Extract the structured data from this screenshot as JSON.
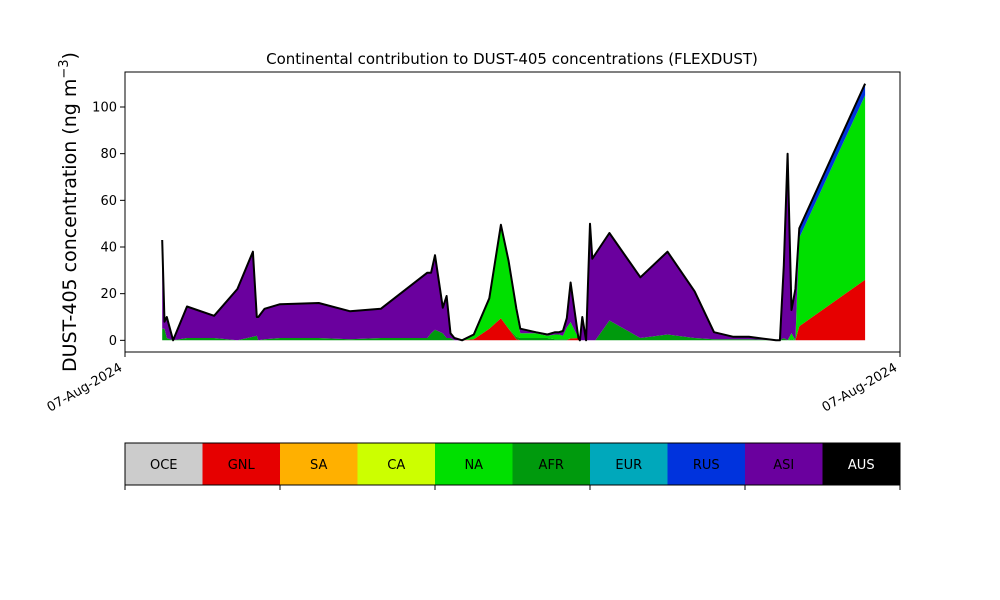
{
  "chart_data": {
    "type": "area",
    "title": "Continental contribution to DUST-405 concentrations (FLEXDUST)",
    "ylabel_main": "DUST-405 concentration (ng m",
    "ylabel_sup": "−3",
    "ylabel_close": ")",
    "xlabel": "",
    "ylim": [
      -5,
      115
    ],
    "yticks": [
      0,
      20,
      40,
      60,
      80,
      100
    ],
    "xtick_labels": [
      "07-Aug-2024",
      "07-Aug-2024"
    ],
    "grid": false,
    "stack_order": [
      "GNL",
      "AFR",
      "NA",
      "RUS",
      "ASI"
    ],
    "x": [
      0.048,
      0.051,
      0.054,
      0.062,
      0.08,
      0.115,
      0.145,
      0.165,
      0.17,
      0.172,
      0.18,
      0.2,
      0.25,
      0.29,
      0.33,
      0.39,
      0.395,
      0.4,
      0.41,
      0.415,
      0.42,
      0.425,
      0.435,
      0.45,
      0.47,
      0.485,
      0.495,
      0.505,
      0.51,
      0.53,
      0.545,
      0.555,
      0.56,
      0.565,
      0.57,
      0.575,
      0.585,
      0.587,
      0.59,
      0.595,
      0.6,
      0.603,
      0.607,
      0.625,
      0.665,
      0.7,
      0.735,
      0.76,
      0.785,
      0.805,
      0.84,
      0.845,
      0.85,
      0.855,
      0.86,
      0.865,
      0.87,
      0.955
    ],
    "series": [
      {
        "name": "GNL",
        "values": [
          0,
          0,
          0,
          0,
          0,
          0,
          0,
          0,
          0,
          0,
          0,
          0,
          0,
          0,
          0,
          0,
          0,
          0,
          0,
          0,
          0,
          0,
          0,
          0.5,
          5,
          9.5,
          5,
          0.5,
          0,
          0,
          0,
          0,
          0,
          0,
          0,
          0.8,
          1,
          0,
          0,
          0,
          0,
          0,
          0,
          0,
          0,
          0,
          0,
          0,
          0,
          0,
          0,
          0,
          0,
          0,
          0,
          0,
          6,
          26
        ]
      },
      {
        "name": "AFR",
        "values": [
          5,
          5,
          1,
          0,
          1,
          1,
          0,
          1.5,
          2,
          0,
          0.5,
          1,
          1,
          0.5,
          1,
          1,
          3,
          4.5,
          3,
          1,
          1,
          0,
          0,
          0,
          0,
          0,
          0,
          1,
          1,
          1,
          1,
          0.5,
          0.5,
          0.5,
          0.5,
          0,
          0,
          0,
          0,
          0,
          0,
          0,
          0,
          8.5,
          1,
          2.5,
          1,
          0.5,
          0.5,
          0.5,
          0,
          0,
          1,
          0,
          0.5,
          0,
          0,
          0
        ]
      },
      {
        "name": "NA",
        "values": [
          0,
          0,
          0,
          0,
          0,
          0,
          0,
          0,
          0,
          0,
          0,
          0,
          0,
          0,
          0,
          0,
          0,
          0,
          0,
          0,
          0,
          0,
          0,
          2,
          13,
          40,
          29,
          10,
          2,
          2,
          1,
          2,
          2,
          1.5,
          5,
          7,
          0,
          0,
          0,
          0,
          0,
          0,
          0,
          0,
          0,
          0,
          0,
          0,
          0,
          0,
          0,
          0,
          0,
          0,
          2.5,
          0,
          38,
          79
        ]
      },
      {
        "name": "RUS",
        "values": [
          0,
          0,
          0,
          0,
          0,
          0,
          0,
          0,
          0,
          0,
          0,
          0,
          0,
          0,
          0,
          0,
          0,
          0,
          0,
          0,
          0,
          0,
          0,
          0,
          0,
          0,
          0,
          0,
          0,
          0,
          0,
          0,
          0,
          0,
          0,
          0,
          0,
          0,
          0,
          0,
          0,
          0,
          0,
          0,
          0,
          0,
          0,
          0,
          0,
          0,
          0,
          0,
          0,
          0,
          0,
          0,
          4,
          5
        ]
      },
      {
        "name": "ASI",
        "values": [
          38,
          3,
          9,
          0,
          13.5,
          9.5,
          22,
          36.5,
          8,
          10,
          13,
          14.5,
          15,
          12,
          12.5,
          28,
          26,
          32,
          11,
          18,
          2,
          1,
          0,
          0,
          0,
          0,
          0,
          2,
          2,
          0.5,
          0.5,
          1,
          1,
          2,
          4,
          17,
          0,
          0,
          10,
          0,
          50,
          35,
          37,
          37.5,
          26,
          35.5,
          20,
          3,
          1,
          1,
          0,
          0,
          31,
          80,
          10,
          22,
          0,
          0
        ]
      }
    ],
    "legend": [
      {
        "label": "OCE",
        "color": "#cccccc"
      },
      {
        "label": "GNL",
        "color": "#e60000"
      },
      {
        "label": "SA",
        "color": "#ffb000"
      },
      {
        "label": "CA",
        "color": "#ccff00"
      },
      {
        "label": "NA",
        "color": "#00e000"
      },
      {
        "label": "AFR",
        "color": "#009a0d"
      },
      {
        "label": "EUR",
        "color": "#00a8bb"
      },
      {
        "label": "RUS",
        "color": "#0033dd"
      },
      {
        "label": "ASI",
        "color": "#6a009e"
      },
      {
        "label": "AUS",
        "color": "#000000",
        "text_color": "#ffffff"
      }
    ]
  }
}
